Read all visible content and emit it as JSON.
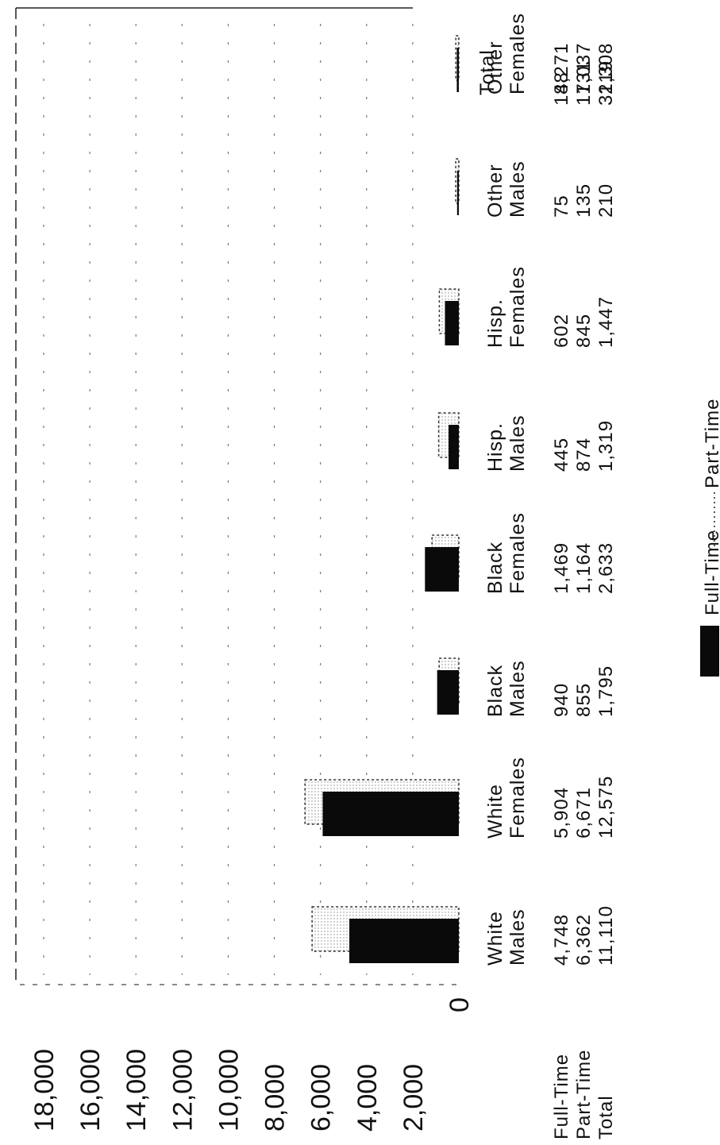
{
  "chart_data": {
    "type": "bar",
    "orientation": "rotated",
    "categories": [
      [
        "White",
        "Males"
      ],
      [
        "White",
        "Females"
      ],
      [
        "Black",
        "Males"
      ],
      [
        "Black",
        "Females"
      ],
      [
        "Hisp.",
        "Males"
      ],
      [
        "Hisp.",
        "Females"
      ],
      [
        "Other",
        "Males"
      ],
      [
        "Other",
        "Females"
      ],
      [
        "Total",
        ""
      ]
    ],
    "series": [
      {
        "name": "Full-Time",
        "values": [
          4748,
          5904,
          940,
          1469,
          445,
          602,
          75,
          88,
          14271
        ],
        "color": "#0a0a0a",
        "fill": "solid"
      },
      {
        "name": "Part-Time",
        "values": [
          6362,
          6671,
          855,
          1164,
          874,
          845,
          135,
          131,
          17037
        ],
        "color": "#555555",
        "fill": "dotted"
      }
    ],
    "totals": [
      11110,
      12575,
      1795,
      2633,
      1319,
      1447,
      210,
      219,
      31308
    ],
    "table": {
      "row_labels": [
        "Full-Time",
        "Part-Time",
        "Total"
      ],
      "rows": [
        [
          "4,748",
          "5,904",
          "940",
          "1,469",
          "445",
          "602",
          "75",
          "88",
          "14,271"
        ],
        [
          "6,362",
          "6,671",
          "855",
          "1,164",
          "874",
          "845",
          "135",
          "131",
          "17,037"
        ],
        [
          "11,110",
          "12,575",
          "1,795",
          "2,633",
          "1,319",
          "1,447",
          "210",
          "219",
          "31,308"
        ]
      ]
    },
    "y_ticks": [
      "0",
      "2,000",
      "4,000",
      "6,000",
      "8,000",
      "10,000",
      "12,000",
      "14,000",
      "16,000",
      "18,000"
    ],
    "ylim": [
      0,
      18000
    ],
    "legend": [
      "Full-Time",
      "Part-Time"
    ],
    "legend_position": "bottom"
  }
}
